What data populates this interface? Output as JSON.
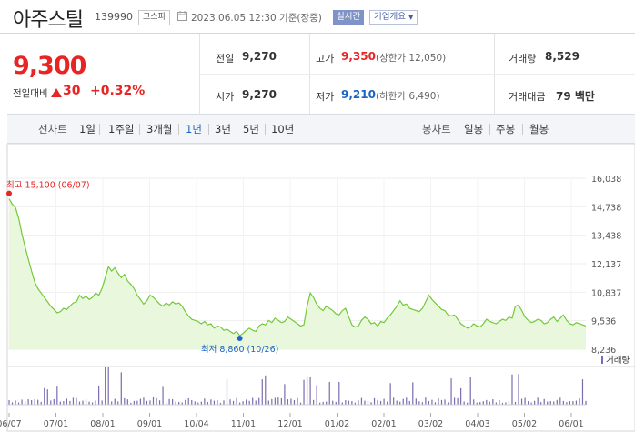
{
  "header": {
    "stock_name": "아주스틸",
    "stock_code": "139990",
    "market": "코스피",
    "datetime": "2023.06.05 12:30 기준(장중)",
    "realtime_label": "실시간",
    "company_label": "기업개요"
  },
  "summary": {
    "price": "9,300",
    "prev_label": "전일대비",
    "change": "30",
    "change_pct": "+0.32%",
    "prev_close_label": "전일",
    "prev_close": "9,270",
    "open_label": "시가",
    "open": "9,270",
    "high_label": "고가",
    "high": "9,350",
    "upper_limit": "(상한가 12,050)",
    "low_label": "저가",
    "low": "9,210",
    "lower_limit": "(하한가 6,490)",
    "volume_label": "거래량",
    "volume": "8,529",
    "amount_label": "거래대금",
    "amount": "79 백만"
  },
  "period_bar": {
    "line_label": "선차트",
    "line_periods": [
      "1일",
      "1주일",
      "3개월",
      "1년",
      "3년",
      "5년",
      "10년"
    ],
    "selected_period": "1년",
    "candle_label": "봉차트",
    "candle_periods": [
      "일봉",
      "주봉",
      "월봉"
    ]
  },
  "colors": {
    "up": "#e82424",
    "down": "#1c64c5",
    "selected": "#1c64c5",
    "line": "#74c83b",
    "area": "#e9f8dd",
    "volume": "#7b6bb0"
  },
  "chart_data": {
    "type": "area",
    "y_ticks": [
      "16,038",
      "14,738",
      "13,438",
      "12,137",
      "10,837",
      "9,536",
      "8,236"
    ],
    "ylim": [
      8236,
      16038
    ],
    "x_ticks": [
      "06/07",
      "07/01",
      "08/01",
      "09/01",
      "10/04",
      "11/01",
      "12/01",
      "01/02",
      "02/01",
      "03/02",
      "04/03",
      "05/02",
      "06/01"
    ],
    "high_label": "최고 15,100 (06/07)",
    "low_label": "최저 8,860 (10/26)",
    "volume_legend": "거래량",
    "series": [
      {
        "values": [
          15100,
          14850,
          14700,
          14200,
          13500,
          12900,
          12350,
          11800,
          11300,
          11000,
          10800,
          10600,
          10400,
          10200,
          10050,
          9900,
          9950,
          10100,
          10050,
          10200,
          10350,
          10400,
          10700,
          10550,
          10650,
          10500,
          10600,
          10800,
          10700,
          11000,
          11500,
          12000,
          11800,
          11950,
          11700,
          11500,
          11650,
          11350,
          11200,
          11000,
          10700,
          10500,
          10300,
          10450,
          10700,
          10600,
          10450,
          10300,
          10200,
          10350,
          10250,
          10400,
          10300,
          10350,
          10200,
          9950,
          9750,
          9600,
          9550,
          9500,
          9400,
          9500,
          9350,
          9400,
          9200,
          9300,
          9250,
          9100,
          9150,
          9050,
          8950,
          9050,
          8860,
          8950,
          9100,
          9200,
          9100,
          9050,
          9300,
          9400,
          9350,
          9550,
          9450,
          9650,
          9550,
          9450,
          9500,
          9700,
          9600,
          9500,
          9400,
          9300,
          9350,
          10200,
          10800,
          10600,
          10300,
          10100,
          10000,
          10200,
          10100,
          10000,
          9850,
          9800,
          10000,
          10100,
          9700,
          9350,
          9250,
          9300,
          9550,
          9700,
          9600,
          9400,
          9450,
          9300,
          9500,
          9450,
          9650,
          9800,
          10000,
          10200,
          10450,
          10250,
          10300,
          10100,
          10050,
          10000,
          9950,
          10100,
          10400,
          10700,
          10500,
          10350,
          10200,
          10050,
          10000,
          9800,
          9750,
          9800,
          9600,
          9400,
          9300,
          9200,
          9250,
          9400,
          9300,
          9250,
          9400,
          9600,
          9500,
          9450,
          9400,
          9500,
          9600,
          9550,
          9700,
          9650,
          10200,
          10250,
          10000,
          9700,
          9550,
          9450,
          9500,
          9600,
          9550,
          9400,
          9450,
          9600,
          9700,
          9500,
          9650,
          9800,
          9550,
          9400,
          9350,
          9450,
          9400,
          9350,
          9300
        ]
      }
    ]
  }
}
